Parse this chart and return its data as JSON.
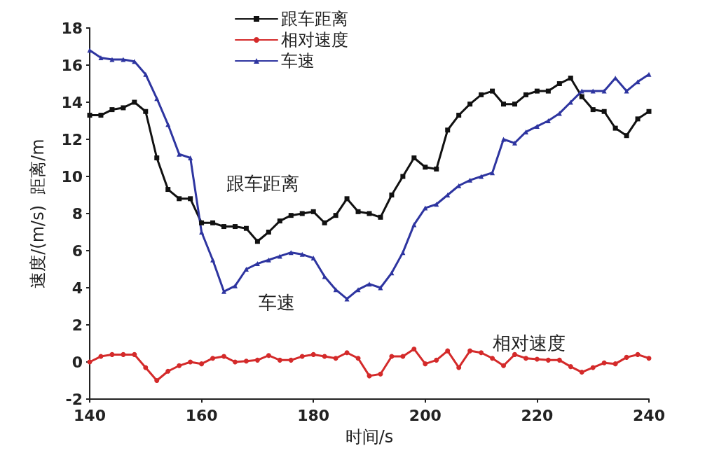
{
  "chart_data": {
    "type": "line",
    "xlabel": "时间/s",
    "ylabel": "速度/(m/s)  距离/m",
    "xlim": [
      140,
      240
    ],
    "xticks": [
      140,
      160,
      180,
      200,
      220,
      240
    ],
    "ylim": [
      -2,
      18
    ],
    "yticks": [
      -2,
      0,
      2,
      4,
      6,
      8,
      10,
      12,
      14,
      16,
      18
    ],
    "grid": false,
    "legend": "top",
    "line_style": "solid",
    "annotations": [
      "跟车距离",
      "车速",
      "相对速度"
    ],
    "x": [
      140,
      142,
      144,
      146,
      148,
      150,
      152,
      154,
      156,
      158,
      160,
      162,
      164,
      166,
      168,
      170,
      172,
      174,
      176,
      178,
      180,
      182,
      184,
      186,
      188,
      190,
      192,
      194,
      196,
      198,
      200,
      202,
      204,
      206,
      208,
      210,
      212,
      214,
      216,
      218,
      220,
      222,
      224,
      226,
      228,
      230,
      232,
      234,
      236,
      238,
      240
    ],
    "series": [
      {
        "name": "跟车距离",
        "color": "#111111",
        "marker": "square",
        "values": [
          13.3,
          13.3,
          13.6,
          13.7,
          14.0,
          13.5,
          11.0,
          9.3,
          8.8,
          8.8,
          7.5,
          7.5,
          7.3,
          7.3,
          7.2,
          6.5,
          7.0,
          7.6,
          7.9,
          8.0,
          8.1,
          7.5,
          7.9,
          8.8,
          8.1,
          8.0,
          7.8,
          9.0,
          10.0,
          11.0,
          10.5,
          10.4,
          12.5,
          13.3,
          13.9,
          14.4,
          14.6,
          13.9,
          13.9,
          14.4,
          14.6,
          14.6,
          15.0,
          15.3,
          14.3,
          13.6,
          13.5,
          12.6,
          12.2,
          13.1,
          13.5
        ]
      },
      {
        "name": "相对速度",
        "color": "#d42a2a",
        "marker": "circle",
        "values": [
          0,
          0.3,
          0.4,
          0.4,
          0.4,
          -0.3,
          -1.0,
          -0.5,
          -0.2,
          0,
          -0.1,
          0.2,
          0.3,
          0,
          0.05,
          0.1,
          0.35,
          0.1,
          0.1,
          0.3,
          0.4,
          0.3,
          0.2,
          0.5,
          0.2,
          -0.75,
          -0.65,
          0.3,
          0.3,
          0.7,
          -0.1,
          0.1,
          0.6,
          -0.3,
          0.6,
          0.5,
          0.2,
          -0.2,
          0.4,
          0.2,
          0.15,
          0.1,
          0.1,
          -0.25,
          -0.55,
          -0.3,
          -0.05,
          -0.1,
          0.25,
          0.4,
          0.2
        ]
      },
      {
        "name": "车速",
        "color": "#2e35a0",
        "marker": "triangle",
        "values": [
          16.8,
          16.4,
          16.3,
          16.3,
          16.2,
          15.5,
          14.2,
          12.8,
          11.2,
          11.0,
          7.0,
          5.5,
          3.8,
          4.1,
          5.0,
          5.3,
          5.5,
          5.7,
          5.9,
          5.8,
          5.6,
          4.6,
          3.9,
          3.4,
          3.9,
          4.2,
          4.0,
          4.8,
          5.9,
          7.4,
          8.3,
          8.5,
          9.0,
          9.5,
          9.8,
          10.0,
          10.2,
          12.0,
          11.8,
          12.4,
          12.7,
          13.0,
          13.4,
          14.0,
          14.6,
          14.6,
          14.6,
          15.3,
          14.6,
          15.1,
          15.5
        ]
      }
    ]
  }
}
